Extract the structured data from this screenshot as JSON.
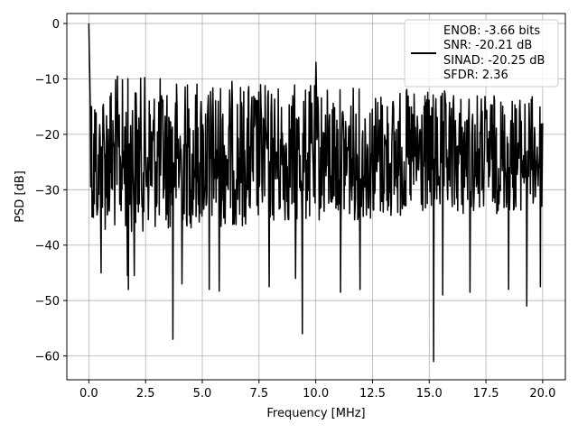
{
  "chart_data": {
    "type": "line",
    "title": "",
    "xlabel": "Frequency [MHz]",
    "ylabel": "PSD [dB]",
    "xlim": [
      -0.97,
      21.0
    ],
    "ylim": [
      -64.3,
      1.8
    ],
    "xticks": [
      0.0,
      2.5,
      5.0,
      7.5,
      10.0,
      12.5,
      15.0,
      17.5,
      20.0
    ],
    "xtick_labels": [
      "0.0",
      "2.5",
      "5.0",
      "7.5",
      "10.0",
      "12.5",
      "15.0",
      "17.5",
      "20.0"
    ],
    "yticks": [
      0,
      -10,
      -20,
      -30,
      -40,
      -50,
      -60
    ],
    "ytick_labels": [
      "0",
      "−10",
      "−20",
      "−30",
      "−40",
      "−50",
      "−60"
    ],
    "grid": true,
    "legend_position": "top-right",
    "line_color": "#000000",
    "legend_lines": [
      "ENOB: -3.66 bits",
      "SNR: -20.21 dB",
      "SINAD: -20.25 dB",
      "SFDR: 2.36"
    ],
    "series": [
      {
        "x_range": [
          0.0,
          20.0
        ],
        "points": 1000,
        "noise_floor": [
          -20.0,
          -23.0
        ],
        "noise_band_top": [
          -9.0,
          -13.0
        ],
        "noise_band_bottom": [
          -38.0,
          -34.0
        ],
        "peaks": [
          {
            "x": 0.0,
            "y": 0.0
          },
          {
            "x": 10.0,
            "y": -7.0
          }
        ],
        "dips": [
          {
            "x": 0.2,
            "y": -35.0
          },
          {
            "x": 0.4,
            "y": -33.0
          },
          {
            "x": 0.55,
            "y": -45.0
          },
          {
            "x": 1.7,
            "y": -45.5
          },
          {
            "x": 1.75,
            "y": -48.0
          },
          {
            "x": 2.0,
            "y": -45.5
          },
          {
            "x": 3.7,
            "y": -57.0
          },
          {
            "x": 4.1,
            "y": -47.0
          },
          {
            "x": 5.3,
            "y": -48.0
          },
          {
            "x": 5.75,
            "y": -48.3
          },
          {
            "x": 7.95,
            "y": -47.5
          },
          {
            "x": 9.4,
            "y": -56.0
          },
          {
            "x": 9.1,
            "y": -46.0
          },
          {
            "x": 11.1,
            "y": -48.5
          },
          {
            "x": 11.95,
            "y": -48.0
          },
          {
            "x": 15.2,
            "y": -61.0
          },
          {
            "x": 15.6,
            "y": -49.0
          },
          {
            "x": 16.8,
            "y": -48.5
          },
          {
            "x": 18.5,
            "y": -48.0
          },
          {
            "x": 19.3,
            "y": -51.0
          },
          {
            "x": 19.9,
            "y": -47.5
          }
        ]
      }
    ]
  }
}
